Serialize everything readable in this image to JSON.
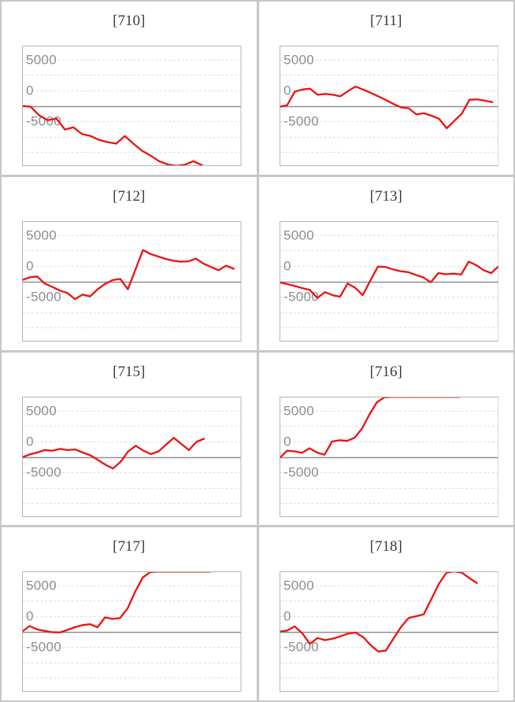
{
  "page": {
    "background": "#ffffff",
    "layout": "2x4-grid-of-slump-charts"
  },
  "style": {
    "line_color": "#ee1111",
    "zero_line_color": "#909090",
    "grid_color": "#dcdcdc",
    "plot_border_color": "#b5b5b5",
    "tick_label_color": "#8e8e8e",
    "title_color": "#3b3b3b",
    "frame_color": "#c7c7c7"
  },
  "axis": {
    "ylim": [
      -9800,
      9800
    ],
    "grid_step": 2500,
    "grid_on": true,
    "yticks": [
      {
        "label": "5000",
        "value": 5000
      },
      {
        "label": "0",
        "value": 0
      },
      {
        "label": "-5000",
        "value": -5000
      }
    ]
  },
  "chart_data": [
    {
      "type": "line",
      "title": "[710]",
      "end_frac": 0.82,
      "values": [
        0,
        -150,
        -1550,
        -2350,
        -2050,
        -3850,
        -3500,
        -4600,
        -4900,
        -5550,
        -5900,
        -6150,
        -4900,
        -6150,
        -7300,
        -8100,
        -9000,
        -9550,
        -9750,
        -9600,
        -9000,
        -9650
      ]
    },
    {
      "type": "line",
      "title": "[711]",
      "end_frac": 0.97,
      "values": [
        -150,
        100,
        2300,
        2650,
        2800,
        1800,
        1950,
        1800,
        1550,
        2400,
        3150,
        2650,
        2100,
        1550,
        950,
        300,
        -250,
        -400,
        -1400,
        -1200,
        -1600,
        -2100,
        -3650,
        -2450,
        -1250,
        1000,
        1050,
        850,
        600
      ]
    },
    {
      "type": "line",
      "title": "[712]",
      "end_frac": 0.965,
      "values": [
        200,
        650,
        800,
        -350,
        -900,
        -1500,
        -1900,
        -2900,
        -2150,
        -2450,
        -1300,
        -400,
        200,
        400,
        -1300,
        1900,
        5100,
        4450,
        4050,
        3650,
        3350,
        3200,
        3250,
        3700,
        2900,
        2350,
        1800,
        2550,
        2050
      ]
    },
    {
      "type": "line",
      "title": "[713]",
      "end_frac": 1.0,
      "values": [
        -150,
        -450,
        -750,
        -1100,
        -1400,
        -2700,
        -1750,
        -2250,
        -2500,
        -350,
        -1050,
        -2250,
        100,
        2400,
        2350,
        1950,
        1650,
        1500,
        1050,
        650,
        -150,
        1350,
        1150,
        1250,
        1100,
        3200,
        2650,
        1800,
        1350,
        2500
      ]
    },
    {
      "type": "line",
      "title": "[715]",
      "end_frac": 0.83,
      "values": [
        -100,
        400,
        700,
        1100,
        1000,
        1300,
        1100,
        1200,
        700,
        250,
        -500,
        -1300,
        -1900,
        -800,
        900,
        1800,
        1000,
        450,
        900,
        2000,
        3100,
        2100,
        1100,
        2450,
        2950
      ]
    },
    {
      "type": "line",
      "title": "[716]",
      "end_frac": 0.82,
      "values": [
        -200,
        1000,
        900,
        650,
        1400,
        700,
        350,
        2500,
        2700,
        2600,
        3100,
        4600,
        6900,
        8900,
        9700,
        9750,
        9750,
        9750,
        9750,
        9750,
        9750,
        9750,
        9750,
        9750,
        9750
      ]
    },
    {
      "type": "line",
      "title": "[717]",
      "end_frac": 0.86,
      "values": [
        0,
        900,
        350,
        100,
        -100,
        -150,
        250,
        700,
        1050,
        1200,
        700,
        2300,
        2050,
        2200,
        3800,
        6500,
        8800,
        9700,
        9750,
        9750,
        9750,
        9750,
        9750,
        9750,
        9750,
        9750
      ]
    },
    {
      "type": "line",
      "title": "[718]",
      "end_frac": 0.9,
      "values": [
        0,
        150,
        850,
        -300,
        -2000,
        -1050,
        -1400,
        -1150,
        -800,
        -350,
        -150,
        -900,
        -2200,
        -3250,
        -3100,
        -1150,
        750,
        2200,
        2500,
        2800,
        5300,
        7800,
        9600,
        9800,
        9600,
        8700,
        7900
      ]
    }
  ]
}
